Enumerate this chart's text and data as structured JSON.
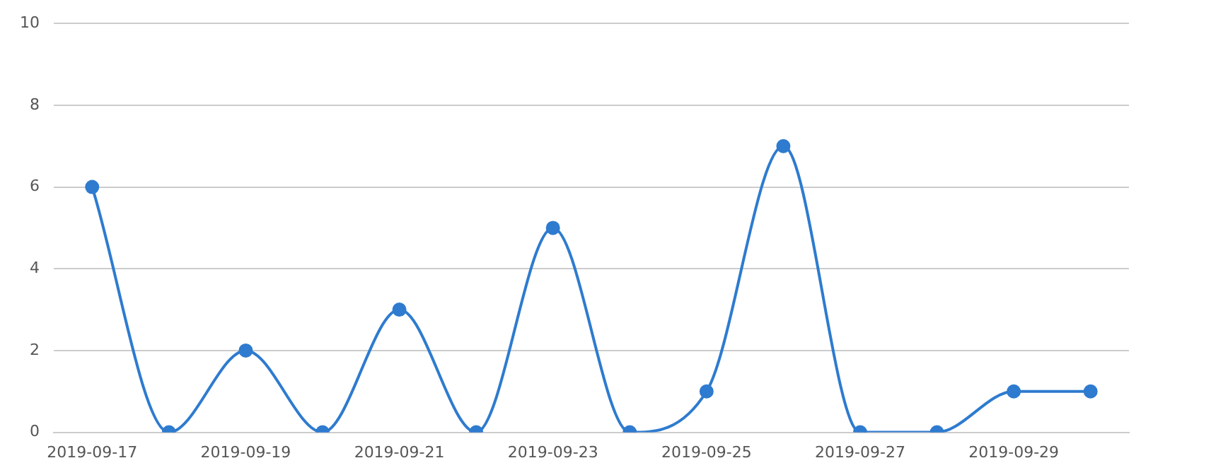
{
  "chart_data": {
    "type": "line",
    "categories": [
      "2019-09-17",
      null,
      "2019-09-19",
      null,
      "2019-09-21",
      null,
      "2019-09-23",
      null,
      "2019-09-25",
      null,
      "2019-09-27",
      null,
      "2019-09-29",
      null
    ],
    "series": [
      {
        "color": "#2e7bcf",
        "values": [
          6,
          0,
          2,
          0,
          3,
          0,
          5,
          0,
          1,
          7,
          0,
          0,
          1,
          1
        ]
      }
    ],
    "ylim": [
      0,
      10
    ],
    "yticks": [
      0,
      2,
      4,
      6,
      8,
      10
    ],
    "grid": "y",
    "legend": false,
    "marker": "circle",
    "line_style": "solid"
  }
}
